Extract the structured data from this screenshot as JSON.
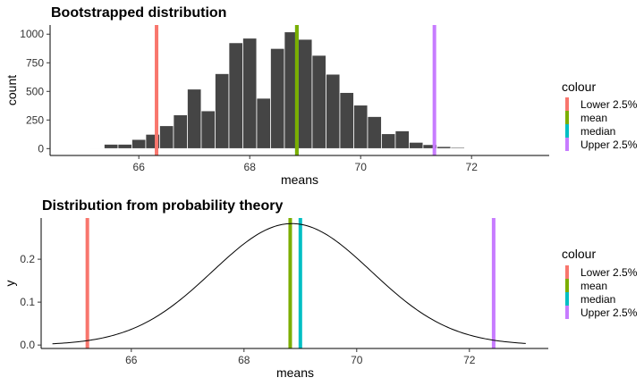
{
  "colors": {
    "Lower 2.5%": "#F8766D",
    "mean": "#7CAE00",
    "median": "#00BFC4",
    "Upper 2.5%": "#C77CFF",
    "bar": "#454545"
  },
  "chart_data": [
    {
      "type": "bar",
      "title": "Bootstrapped distribution",
      "xlabel": "means",
      "ylabel": "count",
      "xlim": [
        64.4,
        73.4
      ],
      "ylim": [
        -60,
        1080
      ],
      "x_ticks": [
        66,
        68,
        70,
        72
      ],
      "y_ticks": [
        0,
        250,
        500,
        750,
        1000
      ],
      "bin_width": 0.25,
      "bins": [
        {
          "x": 64.75,
          "count": 5
        },
        {
          "x": 65.0,
          "count": 5
        },
        {
          "x": 65.25,
          "count": 2
        },
        {
          "x": 65.5,
          "count": 38
        },
        {
          "x": 65.75,
          "count": 38
        },
        {
          "x": 66.0,
          "count": 80
        },
        {
          "x": 66.25,
          "count": 125
        },
        {
          "x": 66.5,
          "count": 200
        },
        {
          "x": 66.75,
          "count": 295
        },
        {
          "x": 67.0,
          "count": 520
        },
        {
          "x": 67.25,
          "count": 330
        },
        {
          "x": 67.5,
          "count": 655
        },
        {
          "x": 67.75,
          "count": 925
        },
        {
          "x": 68.0,
          "count": 965
        },
        {
          "x": 68.25,
          "count": 440
        },
        {
          "x": 68.5,
          "count": 875
        },
        {
          "x": 68.75,
          "count": 1020
        },
        {
          "x": 69.0,
          "count": 955
        },
        {
          "x": 69.25,
          "count": 815
        },
        {
          "x": 69.5,
          "count": 650
        },
        {
          "x": 69.75,
          "count": 490
        },
        {
          "x": 70.0,
          "count": 380
        },
        {
          "x": 70.25,
          "count": 280
        },
        {
          "x": 70.5,
          "count": 130
        },
        {
          "x": 70.75,
          "count": 155
        },
        {
          "x": 71.0,
          "count": 55
        },
        {
          "x": 71.25,
          "count": 35
        },
        {
          "x": 71.5,
          "count": 18
        },
        {
          "x": 71.75,
          "count": 10
        },
        {
          "x": 72.0,
          "count": 5
        }
      ],
      "lines": [
        {
          "name": "Lower 2.5%",
          "x": 66.32
        },
        {
          "name": "median",
          "x": 68.85
        },
        {
          "name": "mean",
          "x": 68.85
        },
        {
          "name": "Upper 2.5%",
          "x": 71.33
        }
      ],
      "legend": {
        "title": "colour",
        "entries": [
          "Lower 2.5%",
          "mean",
          "median",
          "Upper 2.5%"
        ],
        "position": "right"
      }
    },
    {
      "type": "line",
      "title": "Distribution from probability theory",
      "xlabel": "means",
      "ylabel": "y",
      "xlim": [
        64.4,
        73.4
      ],
      "ylim": [
        -0.008,
        0.296
      ],
      "x_ticks": [
        66,
        68,
        70,
        72
      ],
      "y_ticks": [
        0.0,
        0.1,
        0.2
      ],
      "y_tick_labels": [
        "0.0",
        "0.1",
        "0.2"
      ],
      "curve": {
        "x_range": [
          64.6,
          73.0
        ],
        "peak": 0.283,
        "center": 68.85,
        "sd": 1.41
      },
      "lines": [
        {
          "name": "Lower 2.5%",
          "x": 65.22
        },
        {
          "name": "mean",
          "x": 68.82
        },
        {
          "name": "median",
          "x": 69.0
        },
        {
          "name": "Upper 2.5%",
          "x": 72.43
        }
      ],
      "legend": {
        "title": "colour",
        "entries": [
          "Lower 2.5%",
          "mean",
          "median",
          "Upper 2.5%"
        ],
        "position": "right"
      }
    }
  ]
}
